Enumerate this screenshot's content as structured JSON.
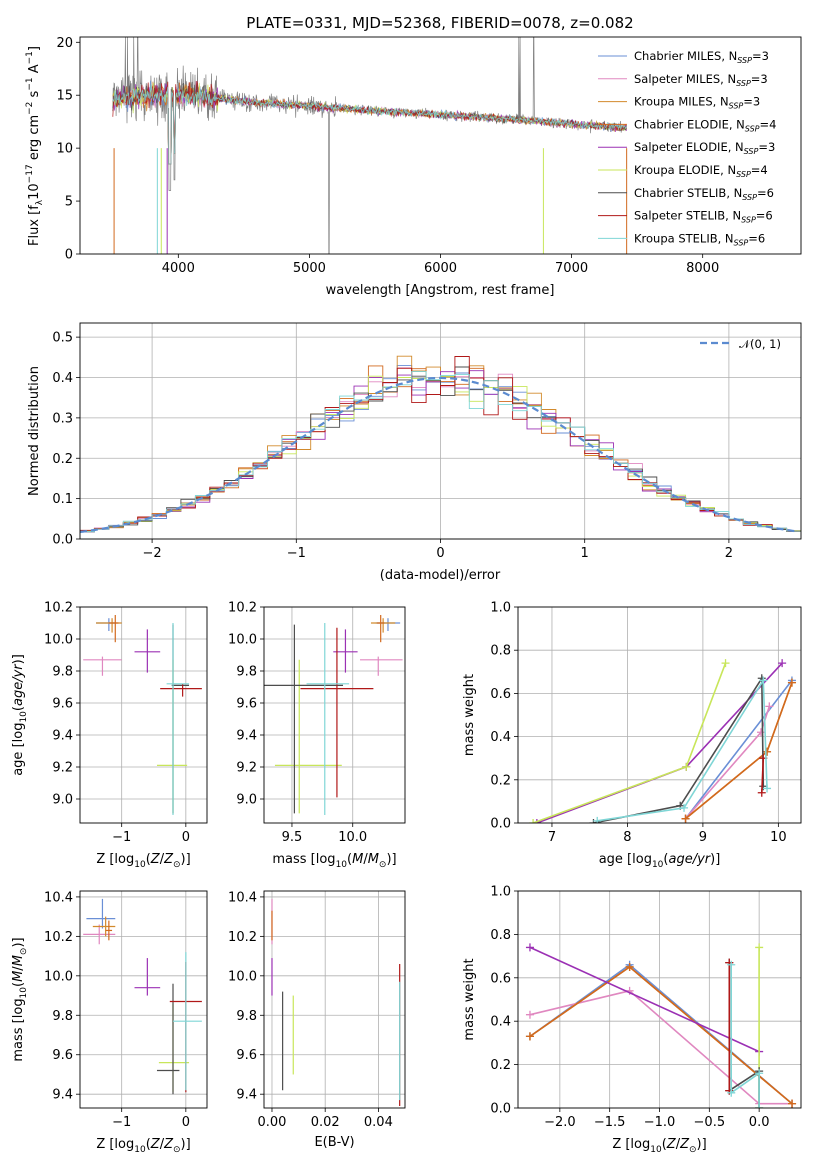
{
  "colors": {
    "Chabrier MILES": "#6a8fd6",
    "Salpeter MILES": "#e088c0",
    "Kroupa MILES": "#d28a2c",
    "Chabrier ELODIE": "#d2691e",
    "Salpeter ELODIE": "#9b30b4",
    "Kroupa ELODIE": "#c8e65a",
    "Chabrier STELIB": "#4d4d4d",
    "Salpeter STELIB": "#b01818",
    "Kroupa STELIB": "#7fd6d6"
  },
  "chart_data": [
    {
      "id": "spectrum",
      "type": "line",
      "title": "PLATE=0331, MJD=52368, FIBERID=0078, z=0.082",
      "xlabel": "wavelength [Angstrom, rest frame]",
      "ylabel": "Flux [f_λ10^-17 erg cm^-2 s^-1 A^-1]",
      "xlim": [
        3250,
        8750
      ],
      "ylim": [
        0,
        20.5
      ],
      "xticks": [
        "4000",
        "5000",
        "6000",
        "7000",
        "8000"
      ],
      "yticks": [
        "0",
        "5",
        "10",
        "15",
        "20"
      ],
      "grid": false,
      "legend": "top-right",
      "series": [
        {
          "name": "Chabrier MILES",
          "label": "Chabrier MILES, N_SSP=3"
        },
        {
          "name": "Salpeter MILES",
          "label": "Salpeter MILES, N_SSP=3"
        },
        {
          "name": "Kroupa MILES",
          "label": "Kroupa MILES, N_SSP=3"
        },
        {
          "name": "Chabrier ELODIE",
          "label": "Chabrier ELODIE, N_SSP=4"
        },
        {
          "name": "Salpeter ELODIE",
          "label": "Salpeter ELODIE, N_SSP=3"
        },
        {
          "name": "Kroupa ELODIE",
          "label": "Kroupa ELODIE, N_SSP=4"
        },
        {
          "name": "Chabrier STELIB",
          "label": "Chabrier STELIB, N_SSP=6"
        },
        {
          "name": "Salpeter STELIB",
          "label": "Salpeter STELIB, N_SSP=6"
        },
        {
          "name": "Kroupa STELIB",
          "label": "Kroupa STELIB, N_SSP=6"
        }
      ],
      "data_trend": {
        "x": [
          3500,
          3700,
          3900,
          4100,
          4300,
          4600,
          5000,
          5400,
          5800,
          6200,
          6600,
          7000,
          7200,
          7420
        ],
        "y": [
          14.6,
          14.9,
          15.1,
          15.0,
          14.7,
          14.3,
          14.0,
          13.6,
          13.3,
          13.0,
          12.7,
          12.3,
          12.1,
          11.9
        ]
      }
    },
    {
      "id": "residuals",
      "type": "step-histogram",
      "xlabel": "(data-model)/error",
      "ylabel": "Normed distribution",
      "xlim": [
        -2.5,
        2.5
      ],
      "ylim": [
        0,
        0.535
      ],
      "xticks": [
        "−2",
        "−1",
        "0",
        "1",
        "2"
      ],
      "yticks": [
        "0.0",
        "0.1",
        "0.2",
        "0.3",
        "0.4",
        "0.5"
      ],
      "grid": true,
      "legend": "top-right",
      "reference_label": "𝒩(0, 1)",
      "bin_width": 0.1
    },
    {
      "id": "age-vs-Z",
      "type": "errorbar",
      "xlabel": "Z [log10(Z/Z⊙)]",
      "ylabel": "age  [log10(age/yr)]",
      "xlim": [
        -1.65,
        0.33
      ],
      "ylim": [
        8.85,
        10.2
      ],
      "xticks": [
        "−1",
        "0"
      ],
      "yticks": [
        "9.0",
        "9.2",
        "9.4",
        "9.6",
        "9.8",
        "10.0",
        "10.2"
      ],
      "grid": true,
      "points": [
        {
          "series": "Chabrier MILES",
          "x": -1.2,
          "y": 10.1,
          "xerr": [
            0.2,
            0.12
          ],
          "yerr": [
            0.05,
            0.03
          ]
        },
        {
          "series": "Salpeter MILES",
          "x": -1.3,
          "y": 9.87,
          "xerr": [
            0.3,
            0.3
          ],
          "yerr": [
            0.1,
            0.02
          ]
        },
        {
          "series": "Kroupa MILES",
          "x": -1.15,
          "y": 10.1,
          "xerr": [
            0.25,
            0.15
          ],
          "yerr": [
            0.06,
            0.03
          ]
        },
        {
          "series": "Chabrier ELODIE",
          "x": -1.1,
          "y": 10.1,
          "xerr": [
            0.1,
            0.05
          ],
          "yerr": [
            0.12,
            0.05
          ]
        },
        {
          "series": "Salpeter ELODIE",
          "x": -0.6,
          "y": 9.92,
          "xerr": [
            0.2,
            0.2
          ],
          "yerr": [
            0.13,
            0.14
          ]
        },
        {
          "series": "Kroupa ELODIE",
          "x": -0.2,
          "y": 9.21,
          "xerr": [
            0.25,
            0.22
          ],
          "yerr": [
            0.3,
            0.66
          ]
        },
        {
          "series": "Chabrier STELIB",
          "x": -0.2,
          "y": 9.71,
          "xerr": [
            0.02,
            0.25
          ],
          "yerr": [
            0.8,
            0.38
          ]
        },
        {
          "series": "Salpeter STELIB",
          "x": -0.05,
          "y": 9.69,
          "xerr": [
            0.35,
            0.3
          ],
          "yerr": [
            0.05,
            0.03
          ]
        },
        {
          "series": "Kroupa STELIB",
          "x": -0.2,
          "y": 9.72,
          "xerr": [
            0.1,
            0.25
          ],
          "yerr": [
            0.82,
            0.38
          ]
        }
      ]
    },
    {
      "id": "age-vs-mass",
      "type": "errorbar",
      "xlabel": "mass [log10(M/M⊙)]",
      "ylabel": "",
      "xlim": [
        9.27,
        10.43
      ],
      "ylim": [
        8.85,
        10.2
      ],
      "xticks": [
        "9.5",
        "10.0"
      ],
      "yticks": [
        "9.0",
        "9.2",
        "9.4",
        "9.6",
        "9.8",
        "10.0",
        "10.2"
      ],
      "grid": true,
      "points": [
        {
          "series": "Chabrier MILES",
          "x": 10.29,
          "y": 10.1,
          "xerr": [
            0.1,
            0.1
          ],
          "yerr": [
            0.05,
            0.03
          ]
        },
        {
          "series": "Salpeter MILES",
          "x": 10.21,
          "y": 9.87,
          "xerr": [
            0.15,
            0.2
          ],
          "yerr": [
            0.1,
            0.02
          ]
        },
        {
          "series": "Kroupa MILES",
          "x": 10.25,
          "y": 10.1,
          "xerr": [
            0.1,
            0.1
          ],
          "yerr": [
            0.06,
            0.03
          ]
        },
        {
          "series": "Chabrier ELODIE",
          "x": 10.23,
          "y": 10.1,
          "xerr": [
            0.03,
            0.03
          ],
          "yerr": [
            0.12,
            0.05
          ]
        },
        {
          "series": "Salpeter ELODIE",
          "x": 9.94,
          "y": 9.92,
          "xerr": [
            0.1,
            0.1
          ],
          "yerr": [
            0.13,
            0.14
          ]
        },
        {
          "series": "Kroupa ELODIE",
          "x": 9.56,
          "y": 9.21,
          "xerr": [
            0.2,
            0.35
          ],
          "yerr": [
            0.3,
            0.66
          ]
        },
        {
          "series": "Chabrier STELIB",
          "x": 9.52,
          "y": 9.71,
          "xerr": [
            0.25,
            0.4
          ],
          "yerr": [
            0.8,
            0.38
          ]
        },
        {
          "series": "Salpeter STELIB",
          "x": 9.87,
          "y": 9.69,
          "xerr": [
            0.3,
            0.3
          ],
          "yerr": [
            0.68,
            0.38
          ]
        },
        {
          "series": "Kroupa STELIB",
          "x": 9.77,
          "y": 9.72,
          "xerr": [
            0.15,
            0.2
          ],
          "yerr": [
            0.82,
            0.38
          ]
        }
      ]
    },
    {
      "id": "weight-vs-age",
      "type": "line",
      "xlabel": "age  [log10(age/yr)]",
      "ylabel": "mass weight",
      "xlim": [
        6.55,
        10.3
      ],
      "ylim": [
        0,
        1
      ],
      "xticks": [
        "7",
        "8",
        "9",
        "10"
      ],
      "yticks": [
        "0.0",
        "0.2",
        "0.4",
        "0.6",
        "0.8",
        "1.0"
      ],
      "grid": true,
      "series": [
        {
          "name": "Chabrier MILES",
          "x": [
            8.77,
            10.18
          ],
          "y": [
            0.02,
            0.66
          ]
        },
        {
          "name": "Salpeter MILES",
          "x": [
            8.77,
            9.77,
            9.88
          ],
          "y": [
            0.02,
            0.42,
            0.54
          ]
        },
        {
          "name": "Kroupa MILES",
          "x": [
            8.77,
            9.85,
            10.18
          ],
          "y": [
            0.02,
            0.33,
            0.65
          ]
        },
        {
          "name": "Chabrier ELODIE",
          "x": [
            8.77,
            9.85,
            10.18
          ],
          "y": [
            0.02,
            0.33,
            0.65
          ]
        },
        {
          "name": "Salpeter ELODIE",
          "x": [
            6.8,
            8.78,
            10.05
          ],
          "y": [
            0.0,
            0.26,
            0.74
          ]
        },
        {
          "name": "Kroupa ELODIE",
          "x": [
            6.75,
            8.78,
            9.3
          ],
          "y": [
            0.0,
            0.26,
            0.74
          ]
        },
        {
          "name": "Chabrier STELIB",
          "x": [
            7.55,
            8.7,
            9.78,
            9.8
          ],
          "y": [
            0.0,
            0.08,
            0.67,
            0.17
          ]
        },
        {
          "name": "Salpeter STELIB",
          "x": [
            9.78,
            9.8
          ],
          "y": [
            0.14,
            0.3
          ]
        },
        {
          "name": "Kroupa STELIB",
          "x": [
            7.6,
            8.75,
            9.8,
            9.85
          ],
          "y": [
            0.01,
            0.07,
            0.66,
            0.16
          ]
        }
      ]
    },
    {
      "id": "mass-vs-Z",
      "type": "errorbar",
      "xlabel": "Z [log10(Z/Z⊙)]",
      "ylabel": "mass [log10(M/M⊙)]",
      "xlim": [
        -1.65,
        0.33
      ],
      "ylim": [
        9.33,
        10.43
      ],
      "xticks": [
        "−1",
        "0"
      ],
      "yticks": [
        "9.4",
        "9.6",
        "9.8",
        "10.0",
        "10.2",
        "10.4"
      ],
      "grid": true,
      "points": [
        {
          "series": "Chabrier MILES",
          "x": -1.3,
          "y": 10.29,
          "xerr": [
            0.25,
            0.2
          ],
          "yerr": [
            0.05,
            0.1
          ]
        },
        {
          "series": "Salpeter MILES",
          "x": -1.35,
          "y": 10.21,
          "xerr": [
            0.25,
            0.25
          ],
          "yerr": [
            0.05,
            0.05
          ]
        },
        {
          "series": "Kroupa MILES",
          "x": -1.25,
          "y": 10.25,
          "xerr": [
            0.2,
            0.15
          ],
          "yerr": [
            0.05,
            0.05
          ]
        },
        {
          "series": "Chabrier ELODIE",
          "x": -1.2,
          "y": 10.23,
          "xerr": [
            0.05,
            0.05
          ],
          "yerr": [
            0.05,
            0.05
          ]
        },
        {
          "series": "Salpeter ELODIE",
          "x": -0.6,
          "y": 9.94,
          "xerr": [
            0.2,
            0.2
          ],
          "yerr": [
            0.04,
            0.15
          ]
        },
        {
          "series": "Kroupa ELODIE",
          "x": -0.2,
          "y": 9.56,
          "xerr": [
            0.22,
            0.25
          ],
          "yerr": [
            0.15,
            0.3
          ]
        },
        {
          "series": "Chabrier STELIB",
          "x": -0.2,
          "y": 9.52,
          "xerr": [
            0.25,
            0.1
          ],
          "yerr": [
            0.12,
            0.44
          ]
        },
        {
          "series": "Salpeter STELIB",
          "x": 0.0,
          "y": 9.87,
          "xerr": [
            0.25,
            0.25
          ],
          "yerr": [
            0.46,
            0.2
          ]
        },
        {
          "series": "Kroupa STELIB",
          "x": 0.0,
          "y": 9.77,
          "xerr": [
            0.2,
            0.25
          ],
          "yerr": [
            0.35,
            0.35
          ]
        }
      ]
    },
    {
      "id": "mass-vs-ebv",
      "type": "errorbar",
      "xlabel": "E(B-V)",
      "ylabel": "",
      "xlim": [
        -0.003,
        0.05
      ],
      "ylim": [
        9.33,
        10.43
      ],
      "xticks": [
        "0.00",
        "0.02",
        "0.04"
      ],
      "yticks": [
        "9.4",
        "9.6",
        "9.8",
        "10.0",
        "10.2",
        "10.4"
      ],
      "grid": true,
      "points": [
        {
          "series": "Salpeter MILES",
          "x": 0.0,
          "y": 10.21,
          "xerr": [
            0,
            0
          ],
          "yerr": [
            0.05,
            0.18
          ]
        },
        {
          "series": "Chabrier ELODIE",
          "x": 0.0,
          "y": 10.23,
          "xerr": [
            0,
            0
          ],
          "yerr": [
            0.05,
            0.1
          ]
        },
        {
          "series": "Salpeter ELODIE",
          "x": 0.0,
          "y": 9.94,
          "xerr": [
            0,
            0
          ],
          "yerr": [
            0.04,
            0.15
          ]
        },
        {
          "series": "Kroupa ELODIE",
          "x": 0.008,
          "y": 9.7,
          "xerr": [
            0,
            0
          ],
          "yerr": [
            0.2,
            0.2
          ]
        },
        {
          "series": "Chabrier STELIB",
          "x": 0.004,
          "y": 9.62,
          "xerr": [
            0,
            0
          ],
          "yerr": [
            0.2,
            0.3
          ]
        },
        {
          "series": "Salpeter STELIB",
          "x": 0.048,
          "y": 9.7,
          "xerr": [
            0,
            0
          ],
          "yerr": [
            0.36,
            0.36
          ]
        },
        {
          "series": "Kroupa STELIB",
          "x": 0.048,
          "y": 9.67,
          "xerr": [
            0,
            0
          ],
          "yerr": [
            0.3,
            0.3
          ]
        }
      ]
    },
    {
      "id": "weight-vs-Z",
      "type": "line",
      "xlabel": "Z [log10(Z/Z⊙)]",
      "ylabel": "mass weight",
      "xlim": [
        -2.42,
        0.42
      ],
      "ylim": [
        0,
        1
      ],
      "xticks": [
        "−2.0",
        "−1.5",
        "−1.0",
        "−0.5",
        "0.0"
      ],
      "yticks": [
        "0.0",
        "0.2",
        "0.4",
        "0.6",
        "0.8",
        "1.0"
      ],
      "grid": true,
      "series": [
        {
          "name": "Chabrier MILES",
          "x": [
            -2.3,
            -1.3,
            0.33
          ],
          "y": [
            0.33,
            0.66,
            0.02
          ]
        },
        {
          "name": "Salpeter MILES",
          "x": [
            -2.3,
            -1.3,
            0.0,
            0.33
          ],
          "y": [
            0.43,
            0.54,
            0.02,
            0.02
          ]
        },
        {
          "name": "Kroupa MILES",
          "x": [
            -2.3,
            -1.3,
            0.33
          ],
          "y": [
            0.33,
            0.65,
            0.02
          ]
        },
        {
          "name": "Chabrier ELODIE",
          "x": [
            -2.3,
            -1.3,
            0.33
          ],
          "y": [
            0.33,
            0.65,
            0.02
          ]
        },
        {
          "name": "Salpeter ELODIE",
          "x": [
            -2.3,
            0.0
          ],
          "y": [
            0.74,
            0.26
          ]
        },
        {
          "name": "Kroupa ELODIE",
          "x": [
            0.0,
            0.0
          ],
          "y": [
            0.74,
            0.0
          ]
        },
        {
          "name": "Chabrier STELIB",
          "x": [
            -0.3,
            -0.3,
            0.0,
            0.0
          ],
          "y": [
            0.67,
            0.08,
            0.17,
            0.0
          ]
        },
        {
          "name": "Salpeter STELIB",
          "x": [
            -0.3,
            -0.3
          ],
          "y": [
            0.67,
            0.08
          ]
        },
        {
          "name": "Kroupa STELIB",
          "x": [
            -0.28,
            -0.28,
            0.0,
            0.0
          ],
          "y": [
            0.66,
            0.07,
            0.16,
            0.0
          ]
        }
      ]
    }
  ]
}
